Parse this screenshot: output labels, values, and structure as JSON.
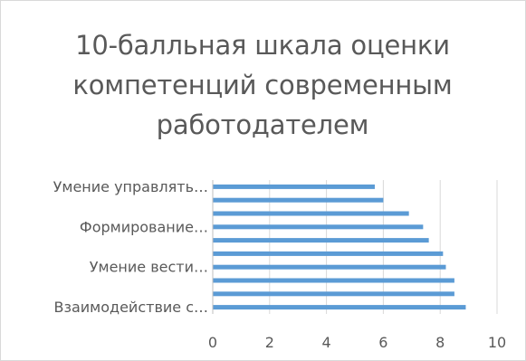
{
  "chart_data": {
    "type": "bar",
    "orientation": "horizontal",
    "title": "10-балльная шкала оценки компетенций современным работодателем",
    "title_lines": [
      "10-балльная шкала оценки",
      "компетенций современным",
      "работодателем"
    ],
    "categories": [
      "Взаимодействие с…",
      "",
      "",
      "Умение вести…",
      "",
      "",
      "Формирование…",
      "",
      "",
      "Умение управлять…"
    ],
    "values": [
      8.9,
      8.5,
      8.5,
      8.2,
      8.1,
      7.6,
      7.4,
      6.9,
      6.0,
      5.7
    ],
    "xlim": [
      0,
      10
    ],
    "xticks": [
      0,
      2,
      4,
      6,
      8,
      10
    ],
    "xlabel": "",
    "ylabel": "",
    "grid": true,
    "legend": "none",
    "colors": {
      "bar": "#5b9bd5",
      "grid": "#d9d9d9",
      "axis": "#bfbfbf",
      "text": "#595959"
    }
  }
}
